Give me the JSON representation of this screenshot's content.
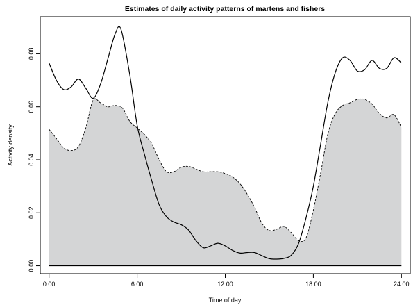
{
  "chart_data": {
    "type": "area",
    "title": "Estimates of daily activity patterns of martens and fishers",
    "xlabel": "Time of day",
    "ylabel": "Activity density",
    "xlim": [
      -0.6,
      24.6
    ],
    "ylim": [
      -0.003,
      0.094
    ],
    "x_ticks": [
      {
        "value": 0,
        "label": "0:00"
      },
      {
        "value": 6,
        "label": "6:00"
      },
      {
        "value": 12,
        "label": "12:00"
      },
      {
        "value": 18,
        "label": "18:00"
      },
      {
        "value": 24,
        "label": "24:00"
      }
    ],
    "y_ticks": [
      {
        "value": 0,
        "label": "0.00"
      },
      {
        "value": 0.02,
        "label": "0.02"
      },
      {
        "value": 0.04,
        "label": "0.04"
      },
      {
        "value": 0.06,
        "label": "0.06"
      },
      {
        "value": 0.08,
        "label": "0.08"
      }
    ],
    "grid": false,
    "legend": "none",
    "baseline": 0,
    "series": [
      {
        "style": "solid",
        "color": "#000000",
        "x": [
          0,
          0.5,
          1,
          1.5,
          2,
          2.5,
          3,
          3.5,
          4,
          4.5,
          4.9,
          5.5,
          6,
          6.5,
          7,
          7.5,
          8,
          8.5,
          9,
          9.5,
          10,
          10.5,
          11,
          11.5,
          12,
          12.5,
          13,
          13.5,
          14,
          14.5,
          15,
          15.5,
          16,
          16.5,
          17,
          17.5,
          18,
          18.5,
          19,
          19.5,
          20,
          20.5,
          21,
          21.5,
          22,
          22.5,
          23,
          23.5,
          24
        ],
        "y": [
          0.0765,
          0.07,
          0.0665,
          0.0675,
          0.0705,
          0.067,
          0.0632,
          0.0685,
          0.078,
          0.0875,
          0.0892,
          0.072,
          0.053,
          0.042,
          0.032,
          0.023,
          0.0185,
          0.0165,
          0.0155,
          0.0135,
          0.0095,
          0.0068,
          0.0075,
          0.0085,
          0.0075,
          0.0058,
          0.0048,
          0.005,
          0.005,
          0.0038,
          0.0027,
          0.0025,
          0.0028,
          0.004,
          0.0085,
          0.018,
          0.03,
          0.046,
          0.062,
          0.073,
          0.0785,
          0.0775,
          0.0735,
          0.074,
          0.0775,
          0.0745,
          0.0745,
          0.0785,
          0.0765
        ]
      },
      {
        "style": "dashed",
        "color": "#000000",
        "fill": "#d4d5d6",
        "x": [
          0,
          0.5,
          1,
          1.5,
          2,
          2.5,
          3,
          3.5,
          4,
          4.5,
          5,
          5.5,
          6,
          6.5,
          7,
          7.5,
          8,
          8.5,
          9,
          9.5,
          10,
          10.5,
          11,
          11.5,
          12,
          12.5,
          13,
          13.5,
          14,
          14.5,
          15,
          15.5,
          16,
          16.5,
          17,
          17.5,
          18,
          18.5,
          19,
          19.5,
          20,
          20.5,
          21,
          21.5,
          22,
          22.5,
          23,
          23.5,
          24
        ],
        "y": [
          0.0515,
          0.048,
          0.0445,
          0.0435,
          0.045,
          0.052,
          0.0625,
          0.0615,
          0.06,
          0.0605,
          0.0595,
          0.0545,
          0.052,
          0.0495,
          0.046,
          0.04,
          0.0355,
          0.0355,
          0.0372,
          0.0375,
          0.0365,
          0.0355,
          0.0355,
          0.0355,
          0.0348,
          0.0335,
          0.031,
          0.027,
          0.022,
          0.016,
          0.0133,
          0.0138,
          0.0148,
          0.0125,
          0.0095,
          0.0105,
          0.021,
          0.035,
          0.05,
          0.0575,
          0.0605,
          0.0615,
          0.0628,
          0.0628,
          0.061,
          0.0575,
          0.0558,
          0.057,
          0.0522
        ]
      }
    ]
  }
}
